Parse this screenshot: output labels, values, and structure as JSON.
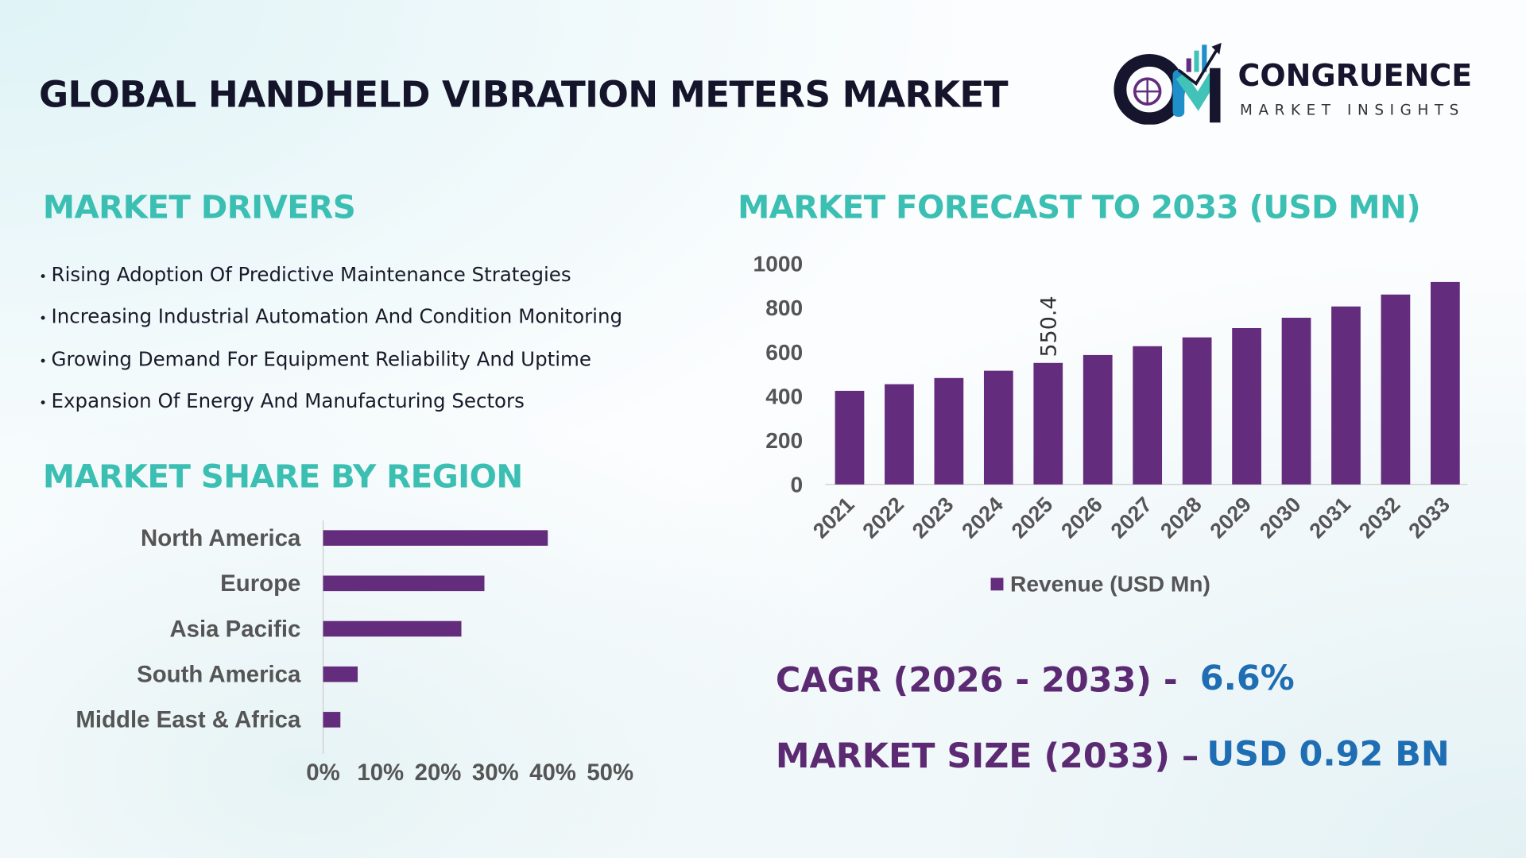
{
  "title": "GLOBAL HANDHELD VIBRATION METERS MARKET",
  "logo": {
    "name": "CONGRUENCE",
    "tagline": "MARKET INSIGHTS"
  },
  "drivers": {
    "heading": "MARKET DRIVERS",
    "items": [
      "Rising Adoption Of Predictive Maintenance Strategies",
      "Increasing Industrial Automation And Condition Monitoring",
      "Growing Demand For Equipment Reliability And Uptime",
      "Expansion Of Energy And Manufacturing Sectors"
    ]
  },
  "region": {
    "heading": "MARKET SHARE BY REGION"
  },
  "forecast": {
    "heading": "MARKET FORECAST TO 2033 (USD MN)"
  },
  "stats": {
    "cagr_label": "CAGR (2026 - 2033) -",
    "cagr_value": "6.6%",
    "size_label": "MARKET SIZE (2033) –",
    "size_value": "USD 0.92 BN"
  },
  "colors": {
    "bar": "#642c7c",
    "heading": "#3cbfb3",
    "stat_label": "#5b2a72",
    "stat_value": "#1f6db3"
  },
  "chart_data": [
    {
      "type": "bar",
      "orientation": "vertical",
      "categories": [
        "2021",
        "2022",
        "2023",
        "2024",
        "2025",
        "2026",
        "2027",
        "2028",
        "2029",
        "2030",
        "2031",
        "2032",
        "2033"
      ],
      "series": [
        {
          "name": "Revenue (USD Mn)",
          "values": [
            424,
            454,
            482,
            515,
            550.4,
            586,
            626,
            666,
            708,
            755,
            806,
            860,
            917
          ]
        }
      ],
      "data_labels": [
        {
          "category": "2025",
          "text": "550.4"
        }
      ],
      "ylim": [
        0,
        1000
      ],
      "yticks": [
        "0",
        "200",
        "400",
        "600",
        "800",
        "1000"
      ],
      "grid": false,
      "legend": "bottom"
    },
    {
      "type": "bar",
      "orientation": "horizontal",
      "categories": [
        "North America",
        "Europe",
        "Asia Pacific",
        "South America",
        "Middle East & Africa"
      ],
      "values": [
        39,
        28,
        24,
        6,
        3
      ],
      "xlim": [
        0,
        50
      ],
      "xticks": [
        "0%",
        "10%",
        "20%",
        "30%",
        "40%",
        "50%"
      ],
      "grid": false
    }
  ]
}
